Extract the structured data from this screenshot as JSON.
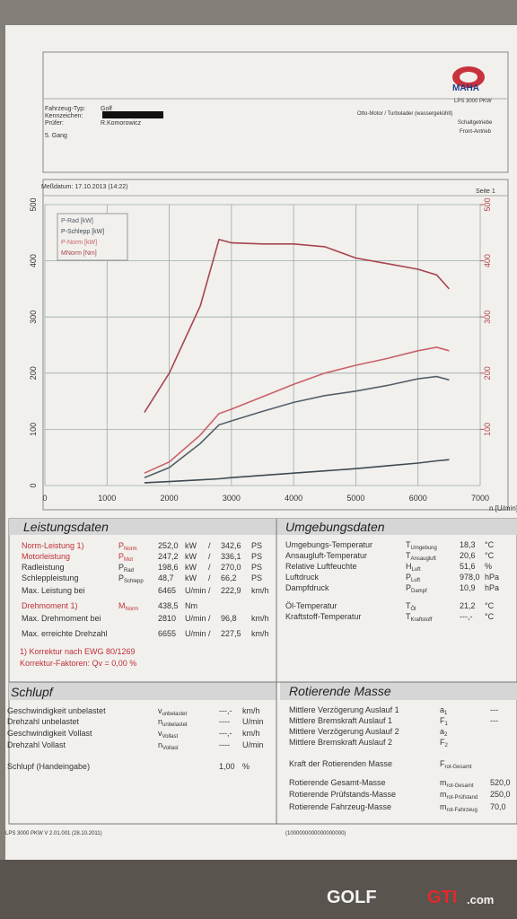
{
  "header": {
    "logo": "MAHA",
    "model": "LPS 3000 PKW",
    "fields": [
      {
        "label": "Fahrzeug-Typ:",
        "value": "Golf"
      },
      {
        "label": "Kennzeichen:"
      },
      {
        "label": "Prüfer:",
        "value": "R.Komorowicz"
      }
    ],
    "gear": "5. Gang",
    "engine": "Otto-Motor / Turbolader (wassergekühlt)",
    "gearbox": "Schaltgetriebe",
    "drive": "Front-Antrieb",
    "date": "Meßdatum: 17.10.2013 (14:22)",
    "page": "Seite 1"
  },
  "chart_data": {
    "type": "line",
    "x_label": "n [U/min]",
    "x": [
      1600,
      2000,
      2500,
      2800,
      3000,
      3500,
      4000,
      4500,
      5000,
      5500,
      6000,
      6300,
      6500
    ],
    "xlim": [
      0,
      7000
    ],
    "xticks": [
      0,
      1000,
      2000,
      3000,
      4000,
      5000,
      6000,
      7000
    ],
    "ylim": [
      0,
      500
    ],
    "yticks": [
      0,
      100,
      200,
      300,
      400,
      500
    ],
    "y2lim": [
      0,
      500
    ],
    "y2ticks": [
      100,
      200,
      300,
      400,
      500
    ],
    "grid": true,
    "series": [
      {
        "name": "P-Rad [kW]",
        "color": "#55606a",
        "values": [
          14,
          32,
          75,
          108,
          115,
          132,
          148,
          160,
          168,
          178,
          190,
          194,
          188
        ]
      },
      {
        "name": "P-Schlepp [kW]",
        "color": "#3f4a52",
        "values": [
          5,
          7,
          10,
          12,
          14,
          18,
          22,
          26,
          30,
          35,
          40,
          44,
          46
        ]
      },
      {
        "name": "P-Norm [kW]",
        "color": "#c9606a",
        "values": [
          22,
          42,
          90,
          128,
          136,
          158,
          180,
          200,
          214,
          226,
          240,
          246,
          240
        ]
      },
      {
        "name": "MNorm [Nm]",
        "color": "#a84450",
        "axis": "y2",
        "values": [
          130,
          200,
          320,
          438,
          432,
          430,
          430,
          425,
          405,
          395,
          385,
          375,
          350
        ]
      }
    ]
  },
  "leistungsdaten": {
    "title": "Leistungsdaten",
    "rows": [
      {
        "label": "Norm-Leistung 1)",
        "symbol": [
          "P",
          "Norm"
        ],
        "values": [
          "252,0",
          "kW",
          "/",
          "342,6",
          "PS"
        ],
        "highlight": true
      },
      {
        "label": "Motorleistung",
        "symbol": [
          "P",
          "Mot"
        ],
        "values": [
          "247,2",
          "kW",
          "/",
          "336,1",
          "PS"
        ],
        "highlight": true
      },
      {
        "label": "Radleistung",
        "symbol": [
          "P",
          "Rad"
        ],
        "values": [
          "198,6",
          "kW",
          "/",
          "270,0",
          "PS"
        ]
      },
      {
        "label": "Schleppleistung",
        "symbol": [
          "P",
          "Schlepp"
        ],
        "values": [
          "48,7",
          "kW",
          "/",
          "66,2",
          "PS"
        ]
      },
      {
        "label": "Max. Leistung bei",
        "values": [
          "6465",
          "U/min",
          "/",
          "222,9",
          "km/h"
        ]
      },
      {
        "label": "Drehmoment 1)",
        "symbol": [
          "M",
          "Norm"
        ],
        "values": [
          "438,5",
          "Nm"
        ],
        "highlight": true
      },
      {
        "label": "Max. Drehmoment bei",
        "values": [
          "2810",
          "U/min",
          "/",
          "96,8",
          "km/h"
        ]
      },
      {
        "label": "Max. erreichte Drehzahl",
        "values": [
          "6655",
          "U/min",
          "/",
          "227,5",
          "km/h"
        ]
      }
    ],
    "notes": [
      "1) Korrektur nach EWG 80/1269",
      "Korrektur-Faktoren: Qv = 0,00 %"
    ]
  },
  "umgebungsdaten": {
    "title": "Umgebungsdaten",
    "rows": [
      {
        "label": "Umgebungs-Temperatur",
        "symbol": [
          "T",
          "Umgebung"
        ],
        "values": [
          "18,3",
          "°C"
        ]
      },
      {
        "label": "Ansaugluft-Temperatur",
        "symbol": [
          "T",
          "Ansaugluft"
        ],
        "values": [
          "20,6",
          "°C"
        ]
      },
      {
        "label": "Relative Luftfeuchte",
        "symbol": [
          "H",
          "Luft"
        ],
        "values": [
          "51,6",
          "%"
        ]
      },
      {
        "label": "Luftdruck",
        "symbol": [
          "P",
          "Luft"
        ],
        "values": [
          "978,0",
          "hPa"
        ]
      },
      {
        "label": "Dampfdruck",
        "symbol": [
          "P",
          "Dampf"
        ],
        "values": [
          "10,9",
          "hPa"
        ]
      },
      {
        "label": "Öl-Temperatur",
        "symbol": [
          "T",
          "Öl"
        ],
        "values": [
          "21,2",
          "°C"
        ]
      },
      {
        "label": "Kraftstoff-Temperatur",
        "symbol": [
          "T",
          "Kraftstoff"
        ],
        "values": [
          "---,-",
          "°C"
        ]
      }
    ]
  },
  "schlupf": {
    "title": "Schlupf",
    "rows": [
      {
        "label": "Geschwindigkeit unbelastet",
        "symbol": [
          "v",
          "unbelastet"
        ],
        "values": [
          "---,-",
          "km/h"
        ]
      },
      {
        "label": "Drehzahl unbelastet",
        "symbol": [
          "n",
          "unbelastet"
        ],
        "values": [
          "----",
          "U/min"
        ]
      },
      {
        "label": "Geschwindigkeit Vollast",
        "symbol": [
          "v",
          "Vollast"
        ],
        "values": [
          "---,-",
          "km/h"
        ]
      },
      {
        "label": "Drehzahl Vollast",
        "symbol": [
          "n",
          "Vollast"
        ],
        "values": [
          "----",
          "U/min"
        ]
      },
      {
        "label": "Schlupf (Handeingabe)",
        "values": [
          "1,00",
          "%"
        ]
      }
    ]
  },
  "rotierende_masse": {
    "title": "Rotierende Masse",
    "rows": [
      {
        "label": "Mittlere Verzögerung Auslauf 1",
        "symbol": [
          "a",
          "1"
        ],
        "values": [
          "---"
        ]
      },
      {
        "label": "Mittlere Bremskraft Auslauf 1",
        "symbol": [
          "F",
          "1"
        ],
        "values": [
          "---"
        ]
      },
      {
        "label": "Mittlere Verzögerung Auslauf 2",
        "symbol": [
          "a",
          "2"
        ]
      },
      {
        "label": "Mittlere Bremskraft Auslauf 2",
        "symbol": [
          "F",
          "2"
        ]
      },
      {
        "label": "Kraft der Rotierenden Masse",
        "symbol": [
          "F",
          "rot-Gesamt"
        ]
      },
      {
        "label": "Rotierende Gesamt-Masse",
        "symbol": [
          "m",
          "rot-Gesamt"
        ],
        "values": [
          "520,0"
        ]
      },
      {
        "label": "Rotierende Prüfstands-Masse",
        "symbol": [
          "m",
          "rot-Prüfstand"
        ],
        "values": [
          "250,0"
        ]
      },
      {
        "label": "Rotierende Fahrzeug-Masse",
        "symbol": [
          "m",
          "rot-Fahrzeug"
        ],
        "values": [
          "70,0"
        ]
      }
    ]
  },
  "footer": {
    "version": "LPS 3000 PKW V 2.01.001 (28.10.2011)",
    "code": "(1000000000000000000)"
  },
  "watermark": {
    "brand": "GOLF",
    "brand2": "GTI",
    "domain": ".com"
  }
}
